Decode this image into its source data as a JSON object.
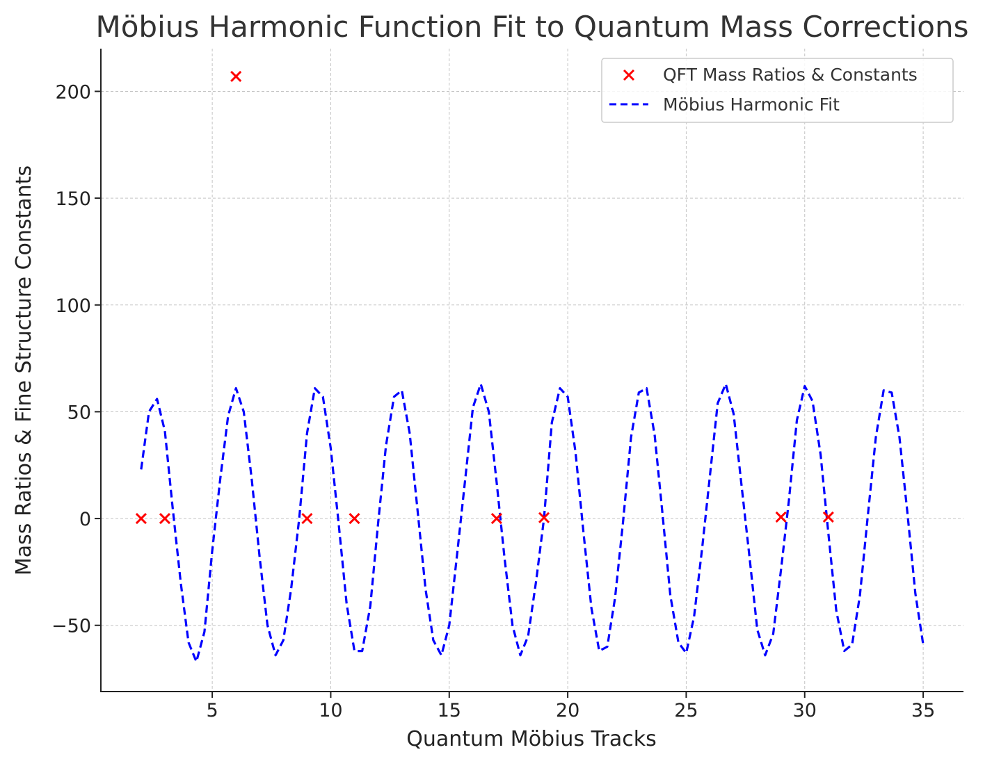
{
  "chart_data": {
    "type": "scatter",
    "title": "Möbius Harmonic Function Fit to Quantum Mass Corrections",
    "xlabel": "Quantum Möbius Tracks",
    "ylabel": "Mass Ratios & Fine Structure Constants",
    "xlim": [
      0.3,
      36.7
    ],
    "ylim": [
      -81,
      220
    ],
    "xticks": [
      5,
      10,
      15,
      20,
      25,
      30,
      35
    ],
    "yticks": [
      -50,
      0,
      50,
      100,
      150,
      200
    ],
    "grid": true,
    "legend_position": "top-right",
    "series": [
      {
        "name": "QFT Mass Ratios & Constants",
        "kind": "scatter",
        "marker": "x",
        "color": "#ff0000",
        "points": [
          [
            2,
            0
          ],
          [
            3,
            0
          ],
          [
            6,
            207
          ],
          [
            9,
            0
          ],
          [
            11,
            0
          ],
          [
            17,
            0
          ],
          [
            19,
            0.4
          ],
          [
            29,
            0.7
          ],
          [
            31,
            0.7
          ]
        ]
      },
      {
        "name": "Möbius Harmonic Fit",
        "kind": "line",
        "style": "dashed",
        "color": "#0000ff",
        "points": [
          [
            2.0,
            23
          ],
          [
            2.33,
            50
          ],
          [
            2.67,
            56
          ],
          [
            3.0,
            41
          ],
          [
            3.33,
            5
          ],
          [
            3.67,
            -30
          ],
          [
            4.0,
            -58
          ],
          [
            4.33,
            -67
          ],
          [
            4.67,
            -53
          ],
          [
            5.0,
            -15
          ],
          [
            5.33,
            18
          ],
          [
            5.67,
            48
          ],
          [
            6.0,
            61
          ],
          [
            6.33,
            50
          ],
          [
            6.67,
            18
          ],
          [
            7.0,
            -18
          ],
          [
            7.33,
            -50
          ],
          [
            7.67,
            -64
          ],
          [
            8.0,
            -57
          ],
          [
            8.33,
            -33
          ],
          [
            8.67,
            0
          ],
          [
            9.0,
            40
          ],
          [
            9.33,
            61
          ],
          [
            9.67,
            57
          ],
          [
            10.0,
            33
          ],
          [
            10.33,
            -2
          ],
          [
            10.67,
            -40
          ],
          [
            11.0,
            -62
          ],
          [
            11.33,
            -62
          ],
          [
            11.67,
            -41
          ],
          [
            12.0,
            -2
          ],
          [
            12.33,
            34
          ],
          [
            12.67,
            57
          ],
          [
            13.0,
            60
          ],
          [
            13.33,
            40
          ],
          [
            13.67,
            3
          ],
          [
            14.0,
            -33
          ],
          [
            14.33,
            -57
          ],
          [
            14.67,
            -64
          ],
          [
            15.0,
            -50
          ],
          [
            15.33,
            -17
          ],
          [
            15.67,
            18
          ],
          [
            16.0,
            52
          ],
          [
            16.33,
            63
          ],
          [
            16.67,
            50
          ],
          [
            17.0,
            17
          ],
          [
            17.33,
            -18
          ],
          [
            17.67,
            -50
          ],
          [
            18.0,
            -64
          ],
          [
            18.33,
            -55
          ],
          [
            18.67,
            -29
          ],
          [
            19.0,
            0
          ],
          [
            19.33,
            45
          ],
          [
            19.67,
            61
          ],
          [
            20.0,
            57
          ],
          [
            20.33,
            31
          ],
          [
            20.67,
            -7
          ],
          [
            21.0,
            -42
          ],
          [
            21.33,
            -62
          ],
          [
            21.67,
            -60
          ],
          [
            22.0,
            -37
          ],
          [
            22.33,
            -2
          ],
          [
            22.67,
            38
          ],
          [
            23.0,
            59
          ],
          [
            23.33,
            61
          ],
          [
            23.67,
            39
          ],
          [
            24.0,
            2
          ],
          [
            24.33,
            -36
          ],
          [
            24.67,
            -58
          ],
          [
            25.0,
            -63
          ],
          [
            25.33,
            -46
          ],
          [
            25.67,
            -14
          ],
          [
            26.0,
            20
          ],
          [
            26.33,
            54
          ],
          [
            26.67,
            63
          ],
          [
            27.0,
            49
          ],
          [
            27.33,
            16
          ],
          [
            27.67,
            -18
          ],
          [
            28.0,
            -52
          ],
          [
            28.33,
            -64
          ],
          [
            28.67,
            -54
          ],
          [
            29.0,
            -24
          ],
          [
            29.33,
            8
          ],
          [
            29.67,
            46
          ],
          [
            30.0,
            62
          ],
          [
            30.33,
            55
          ],
          [
            30.67,
            30
          ],
          [
            31.0,
            -7
          ],
          [
            31.33,
            -43
          ],
          [
            31.67,
            -62
          ],
          [
            32.0,
            -59
          ],
          [
            32.33,
            -36
          ],
          [
            32.67,
            2
          ],
          [
            33.0,
            38
          ],
          [
            33.33,
            60
          ],
          [
            33.67,
            59
          ],
          [
            34.0,
            38
          ],
          [
            34.33,
            3
          ],
          [
            34.67,
            -35
          ],
          [
            35.0,
            -59
          ]
        ]
      }
    ]
  }
}
